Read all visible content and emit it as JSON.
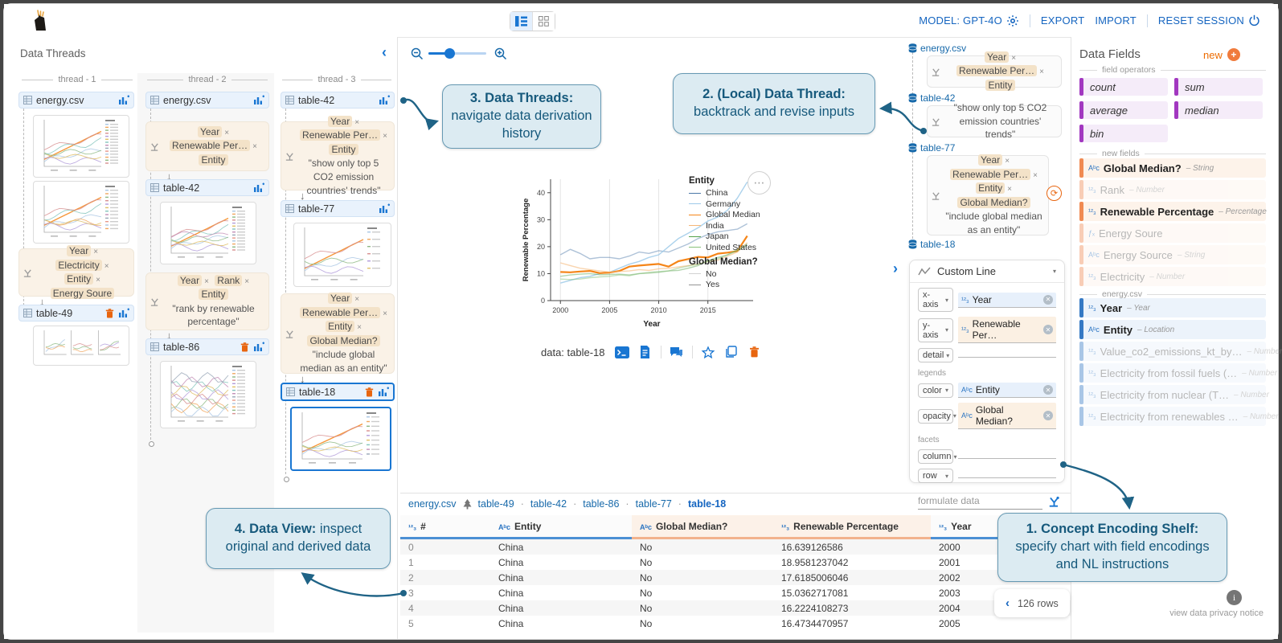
{
  "topbar": {
    "model_label": "MODEL: GPT-4O",
    "export_label": "EXPORT",
    "import_label": "IMPORT",
    "reset_label": "RESET SESSION"
  },
  "icons": {
    "number": "¹²₃",
    "string": "Aᵇᴄ",
    "derived": "ƒₓ",
    "more": "⋯",
    "down_arrow": "↓",
    "collapse": "‹",
    "expand": "›",
    "prev": "‹",
    "info": "i",
    "plus": "+",
    "refresh": "⟳",
    "caret": "▾"
  },
  "threads_panel": {
    "title": "Data Threads",
    "t1": {
      "label": "thread - 1",
      "n1": "energy.csv",
      "c1": {
        "chips": [
          {
            "t": "Year",
            "x": "×"
          },
          {
            "t": "Electricity",
            "x": "×"
          },
          {
            "t": "Entity",
            "x": "×"
          },
          {
            "t": "Energy Soure",
            "x": ""
          }
        ]
      },
      "n2": "table-49"
    },
    "t2": {
      "label": "thread - 2",
      "n1": "energy.csv",
      "c1": {
        "chips": [
          {
            "t": "Year",
            "x": "×"
          },
          {
            "t": "Renewable Per…",
            "x": "×"
          },
          {
            "t": "Entity",
            "x": ""
          }
        ]
      },
      "n2": "table-42",
      "c2": {
        "chips": [
          {
            "t": "Year",
            "x": "×"
          },
          {
            "t": "Rank",
            "x": "×"
          },
          {
            "t": "Entity",
            "x": ""
          }
        ],
        "quote": "\"rank by renewable percentage\""
      },
      "n3": "table-86"
    },
    "t3": {
      "label": "thread - 3",
      "n1": "table-42",
      "c1": {
        "chips": [
          {
            "t": "Year",
            "x": "×"
          },
          {
            "t": "Renewable Per…",
            "x": "×"
          },
          {
            "t": "Entity",
            "x": ""
          }
        ],
        "quote": "\"show only top 5 CO2 emission countries' trends\""
      },
      "n2": "table-77",
      "c2": {
        "chips": [
          {
            "t": "Year",
            "x": "×"
          },
          {
            "t": "Renewable Per…",
            "x": "×"
          },
          {
            "t": "Entity",
            "x": "×"
          },
          {
            "t": "Global Median?",
            "x": ""
          }
        ],
        "quote": "\"include global median as an entity\""
      },
      "n3": "table-18"
    }
  },
  "canvas": {
    "chart_label": "data: table-18"
  },
  "local_thread": {
    "n1": "energy.csv",
    "c1": {
      "chips": [
        {
          "t": "Year",
          "x": "×"
        },
        {
          "t": "Renewable Per…",
          "x": "×"
        },
        {
          "t": "Entity",
          "x": ""
        }
      ]
    },
    "n2": "table-42",
    "c2": {
      "quote": "\"show only top 5 CO2 emission countries' trends\""
    },
    "n3": "table-77",
    "c3": {
      "chips": [
        {
          "t": "Year",
          "x": "×"
        },
        {
          "t": "Renewable Per…",
          "x": "×"
        },
        {
          "t": "Entity",
          "x": "×"
        },
        {
          "t": "Global Median?",
          "x": ""
        }
      ],
      "quote": "\"include global median as an entity\""
    },
    "n4": "table-18"
  },
  "shelf": {
    "chart_type": "Custom Line",
    "x_axis": {
      "label": "x-axis",
      "field": "Year"
    },
    "y_axis": {
      "label": "y-axis",
      "field": "Renewable Per…"
    },
    "detail": {
      "label": "detail"
    },
    "legends_label": "legends",
    "color": {
      "label": "color",
      "field": "Entity"
    },
    "opacity": {
      "label": "opacity",
      "field": "Global Median?"
    },
    "facets_label": "facets",
    "column": {
      "label": "column"
    },
    "row": {
      "label": "row"
    },
    "formulate_placeholder": "formulate data"
  },
  "data_fields": {
    "title": "Data Fields",
    "new_label": "new",
    "dividers": {
      "operators": "field operators",
      "new_fields": "new fields",
      "source": "energy.csv"
    },
    "operators": [
      "count",
      "sum",
      "average",
      "median",
      "bin"
    ],
    "new_fields": [
      {
        "name": "Global Median?",
        "type_label": "– String",
        "icon": "string"
      },
      {
        "name": "Rank",
        "type_label": "– Number",
        "icon": "number"
      },
      {
        "name": "Renewable Percentage",
        "type_label": "– Percentage",
        "icon": "number"
      },
      {
        "name": "Energy Soure",
        "type_label": "",
        "icon": "derived"
      },
      {
        "name": "Energy Source",
        "type_label": "– String",
        "icon": "string"
      },
      {
        "name": "Electricity",
        "type_label": "– Number",
        "icon": "number"
      }
    ],
    "source_fields": [
      {
        "name": "Year",
        "type_label": "– Year",
        "icon": "number"
      },
      {
        "name": "Entity",
        "type_label": "– Location",
        "icon": "string"
      },
      {
        "name": "Value_co2_emissions_kt_by…",
        "type_label": "– Number",
        "icon": "number"
      },
      {
        "name": "Electricity from fossil fuels (…",
        "type_label": "– Number",
        "icon": "number"
      },
      {
        "name": "Electricity from nuclear (T…",
        "type_label": "– Number",
        "icon": "number"
      },
      {
        "name": "Electricity from renewables …",
        "type_label": "– Number",
        "icon": "number"
      }
    ]
  },
  "chart_data": {
    "type": "line",
    "xlabel": "Year",
    "ylabel": "Renewable Percentage",
    "xlim": [
      1999,
      2019.6
    ],
    "ylim": [
      0,
      45
    ],
    "xticks": [
      2000,
      2005,
      2010,
      2015
    ],
    "yticks": [
      0,
      10,
      20,
      30,
      40
    ],
    "grid": "vertical-only",
    "legend_position": "right",
    "x": [
      2000,
      2001,
      2002,
      2003,
      2004,
      2005,
      2006,
      2007,
      2008,
      2009,
      2010,
      2011,
      2012,
      2013,
      2014,
      2015,
      2016,
      2017,
      2018,
      2019
    ],
    "series": [
      {
        "name": "China",
        "color": "#4c78a8",
        "opacity": 0.45,
        "width": 1.4,
        "values": [
          17,
          19,
          17.5,
          15.5,
          16,
          16,
          15.5,
          16.5,
          18,
          17.5,
          18.5,
          18,
          19.5,
          21,
          23,
          24.5,
          25.5,
          26,
          26.5,
          28.5
        ]
      },
      {
        "name": "Germany",
        "color": "#9ecae9",
        "opacity": 0.85,
        "width": 1.4,
        "values": [
          6.5,
          7.5,
          8.5,
          9,
          10,
          10.5,
          12,
          13.5,
          14.5,
          16,
          17,
          20,
          23,
          25,
          27,
          29.5,
          31,
          33.5,
          38,
          44
        ]
      },
      {
        "name": "Global Median",
        "color": "#f58518",
        "opacity": 1,
        "width": 2.2,
        "values": [
          10.6,
          10.5,
          10.8,
          11,
          10.2,
          10.4,
          11,
          12.6,
          13,
          13.3,
          13.6,
          12.6,
          14.6,
          15.4,
          16.2,
          16,
          17.4,
          17.8,
          18.4,
          24
        ]
      },
      {
        "name": "India",
        "color": "#f5b778",
        "opacity": 0.6,
        "width": 1.4,
        "values": [
          14,
          13,
          12,
          11.5,
          11,
          10.6,
          10.8,
          11,
          11.5,
          11.2,
          11.8,
          12,
          12.5,
          13,
          13.5,
          14.5,
          15,
          16.5,
          18,
          21.5
        ]
      },
      {
        "name": "Japan",
        "color": "#54a24b",
        "opacity": 0.45,
        "width": 1.4,
        "values": [
          9,
          9.5,
          9.8,
          10,
          9.6,
          9.7,
          9.8,
          9.5,
          10,
          10.2,
          10.5,
          11,
          11.2,
          12,
          13,
          14.8,
          16,
          17,
          18.5,
          20.5
        ]
      },
      {
        "name": "United States",
        "color": "#88c27a",
        "opacity": 0.5,
        "width": 1.4,
        "values": [
          8,
          7.8,
          8,
          8.5,
          8.8,
          9,
          9.5,
          9.2,
          10,
          10.5,
          10.8,
          11,
          12,
          12.8,
          13.5,
          14.5,
          15.5,
          17,
          19,
          21
        ]
      }
    ],
    "legend_title": "Entity",
    "legend2": {
      "title": "Global Median?",
      "entries": [
        {
          "label": "No",
          "color": "#d2d2d2"
        },
        {
          "label": "Yes",
          "color": "#949494"
        }
      ]
    }
  },
  "data_view": {
    "tabs": [
      "energy.csv",
      "table-49",
      "table-42",
      "table-86",
      "table-77",
      "table-18"
    ],
    "active_tab": "table-18",
    "columns": [
      {
        "name": "#",
        "icon": "number",
        "tone": "blue"
      },
      {
        "name": "Entity",
        "icon": "string",
        "tone": "blue"
      },
      {
        "name": "Global Median?",
        "icon": "string",
        "tone": "orange"
      },
      {
        "name": "Renewable Percentage",
        "icon": "number",
        "tone": "orange"
      },
      {
        "name": "Year",
        "icon": "number",
        "tone": "blue"
      }
    ],
    "rows": [
      [
        "0",
        "China",
        "No",
        "16.639126586",
        "2000"
      ],
      [
        "1",
        "China",
        "No",
        "18.9581237042",
        "2001"
      ],
      [
        "2",
        "China",
        "No",
        "17.6185006046",
        "2002"
      ],
      [
        "3",
        "China",
        "No",
        "15.0362717081",
        "2003"
      ],
      [
        "4",
        "China",
        "No",
        "16.2224108273",
        "2004"
      ],
      [
        "5",
        "China",
        "No",
        "16.4734470957",
        "2005"
      ]
    ],
    "row_count": "126 rows"
  },
  "callouts": {
    "c1": {
      "title": "1. Concept Encoding Shelf:",
      "body": " specify chart with field encodings and NL instructions"
    },
    "c2": {
      "title": "2. (Local) Data Thread:",
      "body": " backtrack and revise inputs"
    },
    "c3": {
      "title": "3. Data Threads:",
      "body": " navigate data derivation history"
    },
    "c4": {
      "title": "4. Data View:",
      "body": " inspect original and derived data"
    }
  },
  "footer": {
    "privacy": "view data privacy notice"
  }
}
